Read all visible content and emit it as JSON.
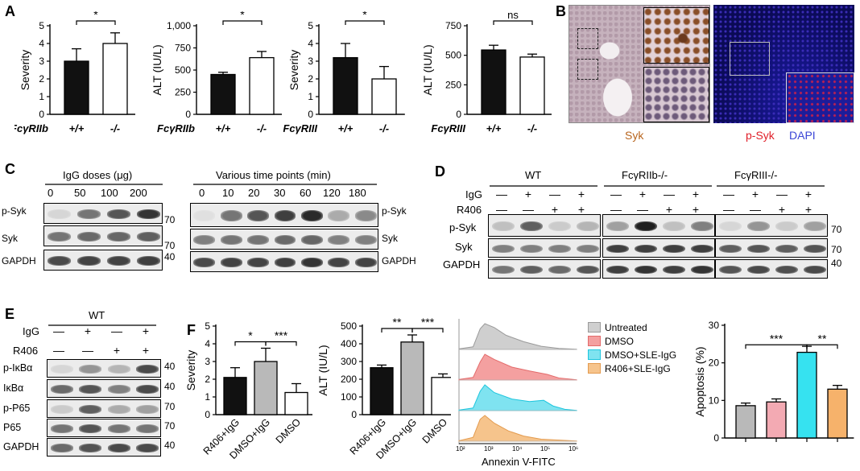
{
  "panel_letters": [
    "A",
    "B",
    "C",
    "D",
    "E",
    "F"
  ],
  "colors": {
    "black": "#111111",
    "white": "#ffffff",
    "gray": "#b9b9b9",
    "pink": "#f3aab3",
    "cyan": "#36e2f0",
    "orange": "#f6b26b",
    "hist_untreated": "#cfcfcf",
    "hist_dmso": "#f4a0a0",
    "hist_dmso_sle": "#7fe3f0",
    "hist_r406_sle": "#f6c48c"
  },
  "chart_data": [
    {
      "type": "bar",
      "id": "A1",
      "ylabel": "Severity",
      "ylim": [
        0,
        5
      ],
      "yticks": [
        "0",
        "1",
        "2",
        "3",
        "4",
        "5"
      ],
      "categories": [
        "+/+",
        "-/-"
      ],
      "group_label": "FcγRIIb",
      "values": [
        3.0,
        4.0
      ],
      "errors": [
        0.7,
        0.6
      ],
      "fills": [
        "black",
        "white"
      ],
      "sig": [
        "*"
      ]
    },
    {
      "type": "bar",
      "id": "A2",
      "ylabel": "ALT (IU/L)",
      "ylim": [
        0,
        1000
      ],
      "yticks": [
        "0",
        "250",
        "500",
        "750",
        "1,000"
      ],
      "categories": [
        "+/+",
        "-/-"
      ],
      "group_label": "FcγRIIb",
      "values": [
        450,
        640
      ],
      "errors": [
        25,
        70
      ],
      "fills": [
        "black",
        "white"
      ],
      "sig": [
        "*"
      ]
    },
    {
      "type": "bar",
      "id": "A3",
      "ylabel": "Severity",
      "ylim": [
        0,
        5
      ],
      "yticks": [
        "0",
        "1",
        "2",
        "3",
        "4",
        "5"
      ],
      "categories": [
        "+/+",
        "-/-"
      ],
      "group_label": "FcγRIII",
      "values": [
        3.2,
        2.0
      ],
      "errors": [
        0.8,
        0.7
      ],
      "fills": [
        "black",
        "white"
      ],
      "sig": [
        "*"
      ]
    },
    {
      "type": "bar",
      "id": "A4",
      "ylabel": "ALT (IU/L)",
      "ylim": [
        0,
        750
      ],
      "yticks": [
        "0",
        "250",
        "500",
        "750"
      ],
      "categories": [
        "+/+",
        "-/-"
      ],
      "group_label": "FcγRIII",
      "values": [
        545,
        485
      ],
      "errors": [
        40,
        25
      ],
      "fills": [
        "black",
        "white"
      ],
      "sig": [
        "ns"
      ]
    },
    {
      "type": "bar",
      "id": "F1",
      "ylabel": "Severity",
      "ylim": [
        0,
        5
      ],
      "yticks": [
        "0",
        "1",
        "2",
        "3",
        "4",
        "5"
      ],
      "categories": [
        "R406+IgG",
        "DMSO+IgG",
        "DMSO"
      ],
      "values": [
        2.1,
        3.0,
        1.25
      ],
      "errors": [
        0.55,
        0.75,
        0.5
      ],
      "fills": [
        "black",
        "gray",
        "white"
      ],
      "sig": [
        "*",
        "***"
      ]
    },
    {
      "type": "bar",
      "id": "F2",
      "ylabel": "ALT (IU/L)",
      "ylim": [
        0,
        500
      ],
      "yticks": [
        "0",
        "100",
        "200",
        "300",
        "400",
        "500"
      ],
      "categories": [
        "R406+IgG",
        "DMSO+IgG",
        "DMSO"
      ],
      "values": [
        265,
        410,
        210
      ],
      "errors": [
        15,
        40,
        20
      ],
      "fills": [
        "black",
        "gray",
        "white"
      ],
      "sig": [
        "**",
        "***"
      ]
    },
    {
      "type": "bar",
      "id": "F4",
      "ylabel": "Apoptosis (%)",
      "ylim": [
        0,
        30
      ],
      "yticks": [
        "0",
        "10",
        "20",
        "30"
      ],
      "categories": [
        "",
        "",
        "",
        ""
      ],
      "values": [
        8.6,
        9.6,
        22.8,
        13.0
      ],
      "errors": [
        0.7,
        0.8,
        1.6,
        1.0
      ],
      "fills": [
        "gray",
        "pink",
        "cyan",
        "orange"
      ],
      "sig": [
        "***",
        "**"
      ]
    }
  ],
  "flow": {
    "xlabel": "Annexin V-FITC",
    "xticks": [
      "10²",
      "10³",
      "10⁴",
      "10⁵",
      "10⁶"
    ],
    "legend": [
      "Untreated",
      "DMSO",
      "DMSO+SLE-IgG",
      "R406+SLE-IgG"
    ]
  },
  "panelB": {
    "syk": "Syk",
    "psyk": "p-Syk",
    "dapi": "DAPI"
  },
  "panelC": {
    "title_left": "IgG doses (μg)",
    "doses": [
      "0",
      "50",
      "100",
      "200"
    ],
    "title_right": "Various time points (min)",
    "times": [
      "0",
      "10",
      "20",
      "30",
      "60",
      "120",
      "180"
    ],
    "rows": [
      "p-Syk",
      "Syk",
      "GAPDH"
    ],
    "mw": [
      "70",
      "70",
      "40"
    ]
  },
  "panelD": {
    "groups": [
      "WT",
      "FcγRIIb-/-",
      "FcγRIII-/-"
    ],
    "igg_label": "IgG",
    "r406_label": "R406",
    "igg": [
      "—",
      "+",
      "—",
      "+"
    ],
    "r406": [
      "—",
      "—",
      "+",
      "+"
    ],
    "rows": [
      "p-Syk",
      "Syk",
      "GAPDH"
    ],
    "mw": [
      "70",
      "70",
      "40"
    ]
  },
  "panelE": {
    "group": "WT",
    "igg_label": "IgG",
    "r406_label": "R406",
    "igg": [
      "—",
      "+",
      "—",
      "+"
    ],
    "r406": [
      "—",
      "—",
      "+",
      "+"
    ],
    "rows": [
      "p-IκBα",
      "IκBα",
      "p-P65",
      "P65",
      "GAPDH"
    ],
    "mw": [
      "40",
      "40",
      "70",
      "70",
      "40"
    ]
  }
}
